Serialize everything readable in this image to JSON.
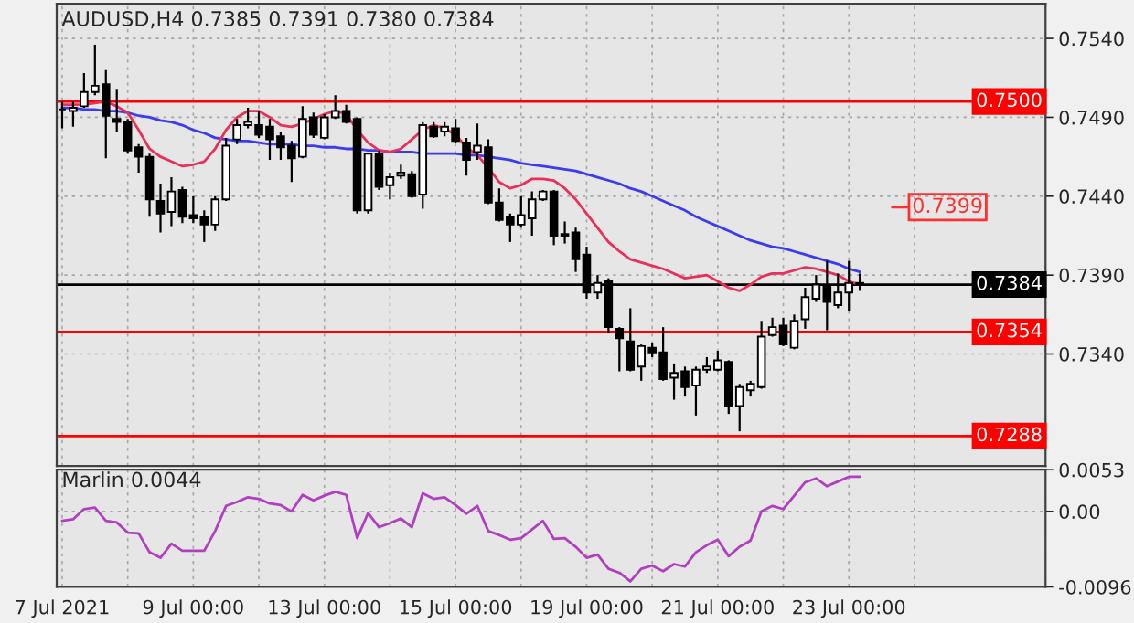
{
  "chart_data": [
    {
      "type": "candlestick",
      "title": "AUDUSD,H4 0.7385 0.7391 0.7380 0.7384",
      "categories": [
        null,
        null,
        null,
        null,
        null,
        null,
        null,
        null,
        null,
        null,
        null,
        null,
        null,
        null,
        null,
        null,
        null,
        null,
        null,
        null,
        null,
        null,
        null,
        null,
        null,
        null,
        null,
        null,
        null,
        null,
        null,
        null,
        null,
        null,
        null,
        null,
        null,
        null,
        null,
        null,
        null,
        null,
        null,
        null,
        null,
        null,
        null,
        null,
        null,
        null,
        null,
        null,
        null,
        null,
        null,
        null,
        null,
        null,
        null,
        null,
        null,
        null,
        null,
        null,
        null,
        null,
        null,
        null,
        null,
        null,
        null,
        null,
        null,
        null
      ],
      "ohlc": [
        [
          0.7495,
          0.75,
          0.7483,
          0.7495
        ],
        [
          0.7494,
          0.75,
          0.7484,
          0.7496
        ],
        [
          0.7497,
          0.7518,
          0.7496,
          0.7506
        ],
        [
          0.7506,
          0.7536,
          0.7504,
          0.751
        ],
        [
          0.7511,
          0.752,
          0.7464,
          0.7491
        ],
        [
          0.7489,
          0.7508,
          0.7481,
          0.7487
        ],
        [
          0.7487,
          0.7489,
          0.7467,
          0.7469
        ],
        [
          0.7471,
          0.7473,
          0.7455,
          0.7465
        ],
        [
          0.7465,
          0.7467,
          0.7427,
          0.7438
        ],
        [
          0.7437,
          0.7448,
          0.7417,
          0.7429
        ],
        [
          0.743,
          0.7452,
          0.7421,
          0.7443
        ],
        [
          0.7444,
          0.7446,
          0.7423,
          0.7427
        ],
        [
          0.7428,
          0.744,
          0.7423,
          0.7426
        ],
        [
          0.7427,
          0.7431,
          0.7411,
          0.7422
        ],
        [
          0.7422,
          0.744,
          0.7418,
          0.7438
        ],
        [
          0.7438,
          0.7477,
          0.7437,
          0.7472
        ],
        [
          0.7476,
          0.7489,
          0.7473,
          0.7485
        ],
        [
          0.7485,
          0.7496,
          0.7483,
          0.7487
        ],
        [
          0.7485,
          0.7494,
          0.7477,
          0.7479
        ],
        [
          0.7484,
          0.7489,
          0.7463,
          0.7476
        ],
        [
          0.7478,
          0.7481,
          0.7463,
          0.7471
        ],
        [
          0.7472,
          0.7475,
          0.7449,
          0.7464
        ],
        [
          0.7465,
          0.7497,
          0.7464,
          0.7489
        ],
        [
          0.749,
          0.7493,
          0.7477,
          0.7479
        ],
        [
          0.7477,
          0.7492,
          0.7476,
          0.749
        ],
        [
          0.749,
          0.7504,
          0.7489,
          0.7494
        ],
        [
          0.7494,
          0.7498,
          0.7486,
          0.7487
        ],
        [
          0.7489,
          0.749,
          0.7429,
          0.7431
        ],
        [
          0.7431,
          0.7467,
          0.7429,
          0.7467
        ],
        [
          0.7467,
          0.7469,
          0.7444,
          0.7446
        ],
        [
          0.7447,
          0.7455,
          0.7438,
          0.7452
        ],
        [
          0.7453,
          0.746,
          0.7451,
          0.7455
        ],
        [
          0.7454,
          0.7456,
          0.7439,
          0.744
        ],
        [
          0.7441,
          0.7487,
          0.7432,
          0.7485
        ],
        [
          0.7484,
          0.7487,
          0.7477,
          0.7478
        ],
        [
          0.7481,
          0.7487,
          0.7478,
          0.7484
        ],
        [
          0.7483,
          0.7489,
          0.7474,
          0.7475
        ],
        [
          0.7474,
          0.7477,
          0.7453,
          0.7463
        ],
        [
          0.7468,
          0.7486,
          0.7463,
          0.7472
        ],
        [
          0.7471,
          0.7476,
          0.7435,
          0.7436
        ],
        [
          0.7436,
          0.7445,
          0.7424,
          0.7425
        ],
        [
          0.7427,
          0.7429,
          0.7411,
          0.7422
        ],
        [
          0.7422,
          0.744,
          0.742,
          0.7428
        ],
        [
          0.7426,
          0.7443,
          0.7415,
          0.7438
        ],
        [
          0.7438,
          0.7444,
          0.7437,
          0.7443
        ],
        [
          0.7443,
          0.7444,
          0.7409,
          0.7415
        ],
        [
          0.7415,
          0.7424,
          0.741,
          0.7416
        ],
        [
          0.7417,
          0.742,
          0.7392,
          0.74
        ],
        [
          0.7403,
          0.7408,
          0.7375,
          0.7379
        ],
        [
          0.7379,
          0.739,
          0.7375,
          0.7385
        ],
        [
          0.7386,
          0.7388,
          0.7353,
          0.7357
        ],
        [
          0.7356,
          0.7357,
          0.7329,
          0.735
        ],
        [
          0.7348,
          0.7369,
          0.7329,
          0.733
        ],
        [
          0.7332,
          0.7346,
          0.7323,
          0.7345
        ],
        [
          0.7344,
          0.7347,
          0.7338,
          0.7341
        ],
        [
          0.7341,
          0.7357,
          0.7323,
          0.7324
        ],
        [
          0.7325,
          0.7334,
          0.7311,
          0.7328
        ],
        [
          0.7329,
          0.7332,
          0.7313,
          0.7319
        ],
        [
          0.732,
          0.7332,
          0.7301,
          0.733
        ],
        [
          0.733,
          0.7338,
          0.7328,
          0.7332
        ],
        [
          0.733,
          0.7342,
          0.7329,
          0.7336
        ],
        [
          0.7335,
          0.7336,
          0.7302,
          0.7307
        ],
        [
          0.7307,
          0.7321,
          0.7291,
          0.7319
        ],
        [
          0.7317,
          0.7323,
          0.7313,
          0.7321
        ],
        [
          0.7319,
          0.7361,
          0.7318,
          0.7351
        ],
        [
          0.7352,
          0.7363,
          0.7351,
          0.7357
        ],
        [
          0.7358,
          0.7363,
          0.7345,
          0.7346
        ],
        [
          0.7344,
          0.7365,
          0.7343,
          0.7361
        ],
        [
          0.7362,
          0.7382,
          0.7356,
          0.7376
        ],
        [
          0.7375,
          0.739,
          0.7373,
          0.7384
        ],
        [
          0.7383,
          0.7399,
          0.7355,
          0.7373
        ],
        [
          0.7371,
          0.7391,
          0.7369,
          0.7379
        ],
        [
          0.7379,
          0.7399,
          0.7367,
          0.7385
        ],
        [
          0.7385,
          0.7391,
          0.738,
          0.7384
        ]
      ],
      "series": [
        {
          "type": "line",
          "color": "#3b3bf0",
          "values": [
            0.7496,
            0.7496,
            0.7495,
            0.7495,
            0.7494,
            0.7494,
            0.7493,
            0.7491,
            0.749,
            0.7488,
            0.7487,
            0.7485,
            0.7482,
            0.748,
            0.7477,
            0.7476,
            0.7475,
            0.7475,
            0.7474,
            0.7473,
            0.7473,
            0.7473,
            0.7472,
            0.7472,
            0.7471,
            0.7471,
            0.747,
            0.747,
            0.7469,
            0.7469,
            0.7468,
            0.7468,
            0.7468,
            0.7467,
            0.7467,
            0.7467,
            0.7467,
            0.7466,
            0.7466,
            0.7465,
            0.7464,
            0.7463,
            0.7461,
            0.746,
            0.7459,
            0.7458,
            0.7457,
            0.7456,
            0.7454,
            0.7452,
            0.745,
            0.7448,
            0.7445,
            0.7443,
            0.744,
            0.7437,
            0.7434,
            0.7431,
            0.7427,
            0.7424,
            0.7421,
            0.7418,
            0.7415,
            0.7412,
            0.741,
            0.7408,
            0.7407,
            0.7405,
            0.7403,
            0.7401,
            0.7399,
            0.7397,
            0.7394,
            0.7392
          ]
        },
        {
          "type": "line",
          "color": "#e8305a",
          "values": [
            0.7498,
            0.7498,
            0.7498,
            0.7499,
            0.75,
            0.7497,
            0.7493,
            0.7482,
            0.747,
            0.7465,
            0.7462,
            0.7459,
            0.746,
            0.7462,
            0.747,
            0.7482,
            0.749,
            0.7494,
            0.7494,
            0.749,
            0.7485,
            0.7484,
            0.7486,
            0.7489,
            0.7492,
            0.7494,
            0.7492,
            0.7482,
            0.7474,
            0.7469,
            0.7468,
            0.747,
            0.7476,
            0.7482,
            0.7485,
            0.7483,
            0.7479,
            0.7471,
            0.7466,
            0.7458,
            0.7449,
            0.7445,
            0.7447,
            0.7451,
            0.7451,
            0.745,
            0.7445,
            0.7438,
            0.7429,
            0.742,
            0.7411,
            0.7405,
            0.74,
            0.7398,
            0.7396,
            0.7394,
            0.7391,
            0.7388,
            0.7389,
            0.739,
            0.7386,
            0.7382,
            0.738,
            0.7384,
            0.7389,
            0.7391,
            0.7391,
            0.7393,
            0.7395,
            0.7394,
            0.7392,
            0.739,
            0.7386,
            0.7384
          ]
        }
      ],
      "ylim": [
        0.7269,
        0.7562
      ],
      "yticks": [
        {
          "value": 0.754,
          "label": "0.7540"
        },
        {
          "value": 0.749,
          "label": "0.7490"
        },
        {
          "value": 0.744,
          "label": "0.7440"
        },
        {
          "value": 0.739,
          "label": "0.7390"
        },
        {
          "value": 0.734,
          "label": "0.7340"
        }
      ],
      "tick_labels": "y",
      "grid": true,
      "ref_lines": [
        {
          "axis": "y",
          "value": 0.75,
          "label": "0.7500",
          "color": "#ff0000"
        },
        {
          "axis": "y",
          "value": 0.7354,
          "label": "0.7354",
          "color": "#ff0000"
        },
        {
          "axis": "y",
          "value": 0.7288,
          "label": "0.7288",
          "color": "#ff0000"
        },
        {
          "axis": "y",
          "value": 0.7384,
          "label": "0.7384",
          "color": "#000000"
        }
      ],
      "annotations": [
        "0.7399"
      ]
    },
    {
      "type": "line",
      "title": "Marlin 0.0044",
      "categories": [
        "7 Jul 2021",
        null,
        null,
        null,
        null,
        null,
        null,
        null,
        null,
        null,
        null,
        null,
        "9 Jul 00:00",
        null,
        null,
        null,
        null,
        null,
        null,
        null,
        null,
        null,
        null,
        null,
        "13 Jul 00:00",
        null,
        null,
        null,
        null,
        null,
        null,
        null,
        null,
        null,
        null,
        null,
        "15 Jul 00:00",
        null,
        null,
        null,
        null,
        null,
        null,
        null,
        null,
        null,
        null,
        null,
        "19 Jul 00:00",
        null,
        null,
        null,
        null,
        null,
        null,
        null,
        null,
        null,
        null,
        null,
        "21 Jul 00:00",
        null,
        null,
        null,
        null,
        null,
        null,
        null,
        null,
        null,
        null,
        null,
        "23 Jul 00:00",
        null
      ],
      "series": [
        {
          "color": "#b040c0",
          "values": [
            -0.0012,
            -0.001,
            0.0003,
            0.0005,
            -0.0012,
            -0.0014,
            -0.0027,
            -0.0028,
            -0.0052,
            -0.0059,
            -0.0041,
            -0.005,
            -0.005,
            -0.005,
            -0.0025,
            0.0007,
            0.0012,
            0.0018,
            0.0016,
            0.001,
            0.0008,
            0.0,
            0.0021,
            0.0014,
            0.002,
            0.0025,
            0.0021,
            -0.0034,
            -0.0002,
            -0.002,
            -0.0015,
            -0.0009,
            -0.002,
            0.0023,
            0.0016,
            0.0018,
            0.0008,
            -0.0003,
            0.0007,
            -0.0025,
            -0.003,
            -0.0036,
            -0.0034,
            -0.0023,
            -0.0012,
            -0.0035,
            -0.0034,
            -0.0045,
            -0.0059,
            -0.0055,
            -0.0073,
            -0.0078,
            -0.0089,
            -0.0073,
            -0.0069,
            -0.0076,
            -0.0067,
            -0.007,
            -0.0052,
            -0.0043,
            -0.0036,
            -0.0057,
            -0.0045,
            -0.0037,
            0.0,
            0.0007,
            0.0003,
            0.002,
            0.0037,
            0.0042,
            0.0032,
            0.0038,
            0.0044,
            0.0044
          ]
        }
      ],
      "ylim": [
        -0.0096,
        0.0053
      ],
      "yticks": [
        {
          "value": 0.0053,
          "label": "0.0053"
        },
        {
          "value": 0,
          "label": "0.00"
        },
        {
          "value": -0.0096,
          "label": "-0.0096"
        }
      ],
      "grid": true
    }
  ]
}
